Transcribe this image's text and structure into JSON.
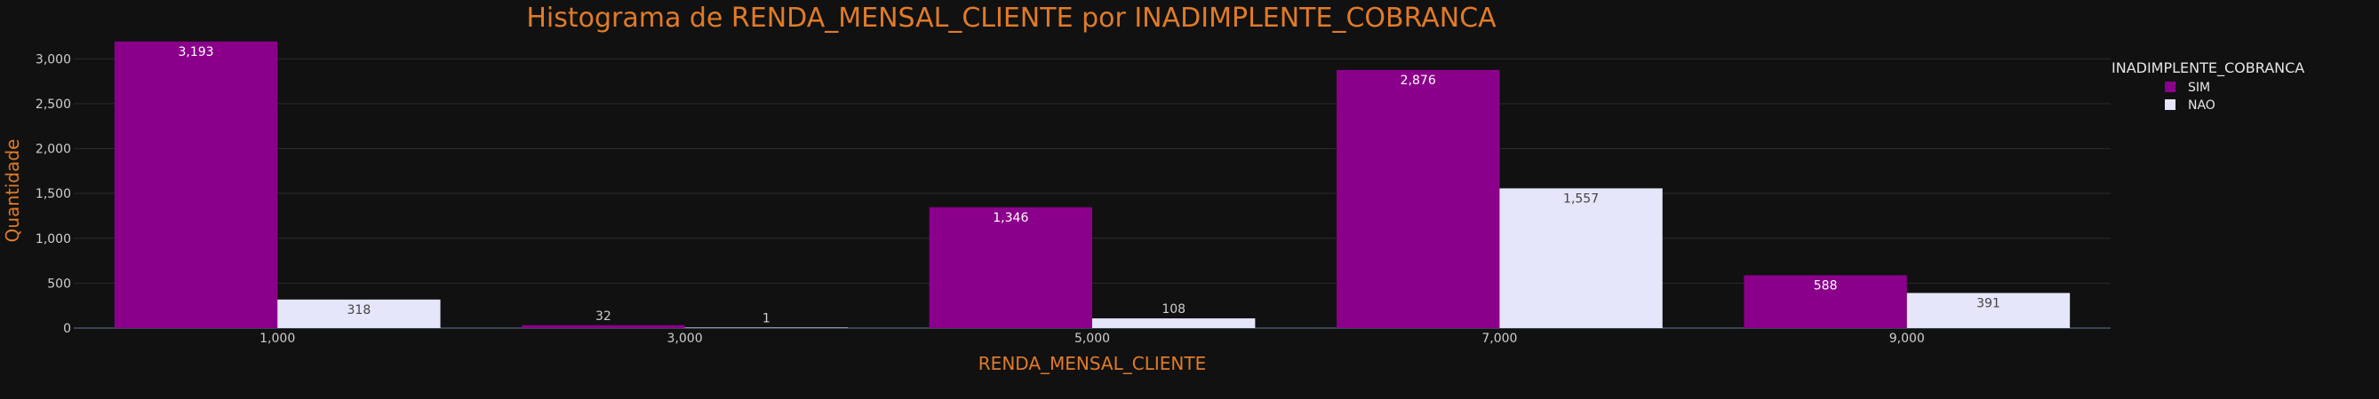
{
  "chart_data": {
    "type": "bar",
    "title": "Histograma de RENDA_MENSAL_CLIENTE por INADIMPLENTE_COBRANCA",
    "xlabel": "RENDA_MENSAL_CLIENTE",
    "ylabel": "Quantidade",
    "categories": [
      "1,000",
      "3,000",
      "5,000",
      "7,000",
      "9,000"
    ],
    "ylim": [
      0,
      3300
    ],
    "yticks": [
      0,
      500,
      1000,
      1500,
      2000,
      2500,
      3000
    ],
    "ytick_labels": [
      "0",
      "500",
      "1,000",
      "1,500",
      "2,000",
      "2,500",
      "3,000"
    ],
    "grid": true,
    "legend": {
      "title": "INADIMPLENTE_COBRANCA",
      "position": "top-right"
    },
    "series": [
      {
        "name": "SIM",
        "color": "#8b008b",
        "values": [
          3193,
          32,
          1346,
          2876,
          588
        ],
        "labels": [
          "3,193",
          "32",
          "1,346",
          "2,876",
          "588"
        ]
      },
      {
        "name": "NAO",
        "color": "#e6e6fa",
        "values": [
          318,
          1,
          108,
          1557,
          391
        ],
        "labels": [
          "318",
          "1",
          "108",
          "1,557",
          "391"
        ]
      }
    ],
    "colors": {
      "background": "#111111",
      "title": "#e07b28",
      "grid": "#2c2c2c",
      "tick": "#cfcfcf"
    }
  }
}
